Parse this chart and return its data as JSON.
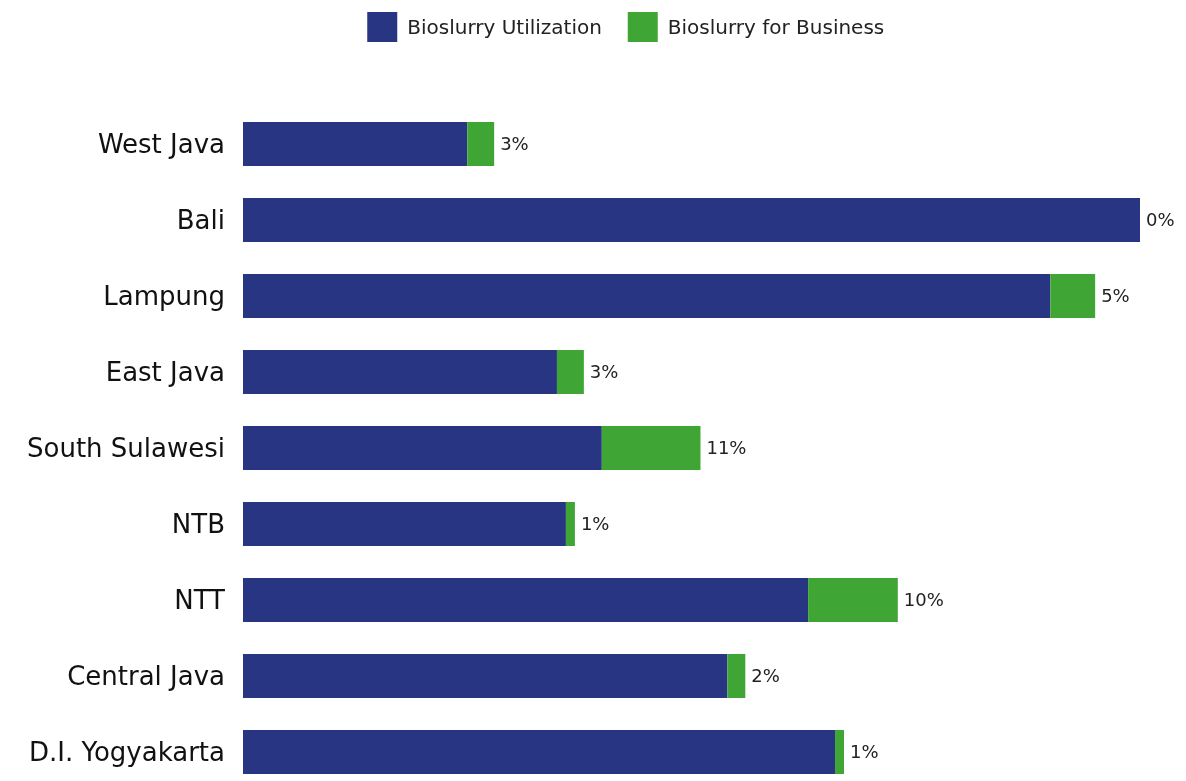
{
  "chart_data": {
    "type": "bar",
    "orientation": "horizontal",
    "stacked": true,
    "legend": "top",
    "xlim": [
      0,
      100
    ],
    "categories": [
      "West Java",
      "Bali",
      "Lampung",
      "East Java",
      "South Sulawesi",
      "NTB",
      "NTT",
      "Central Java",
      "D.I. Yogyakarta"
    ],
    "series": [
      {
        "name": "Bioslurry Utilization",
        "color": "#283583",
        "values": [
          25,
          100,
          90,
          35,
          40,
          36,
          63,
          54,
          66
        ]
      },
      {
        "name": "Bioslurry for Business",
        "color": "#3fa535",
        "values": [
          3,
          0,
          5,
          3,
          11,
          1,
          10,
          2,
          1
        ],
        "value_labels": [
          "3%",
          "0%",
          "5%",
          "3%",
          "11%",
          "1%",
          "10%",
          "2%",
          "1%"
        ]
      }
    ]
  }
}
